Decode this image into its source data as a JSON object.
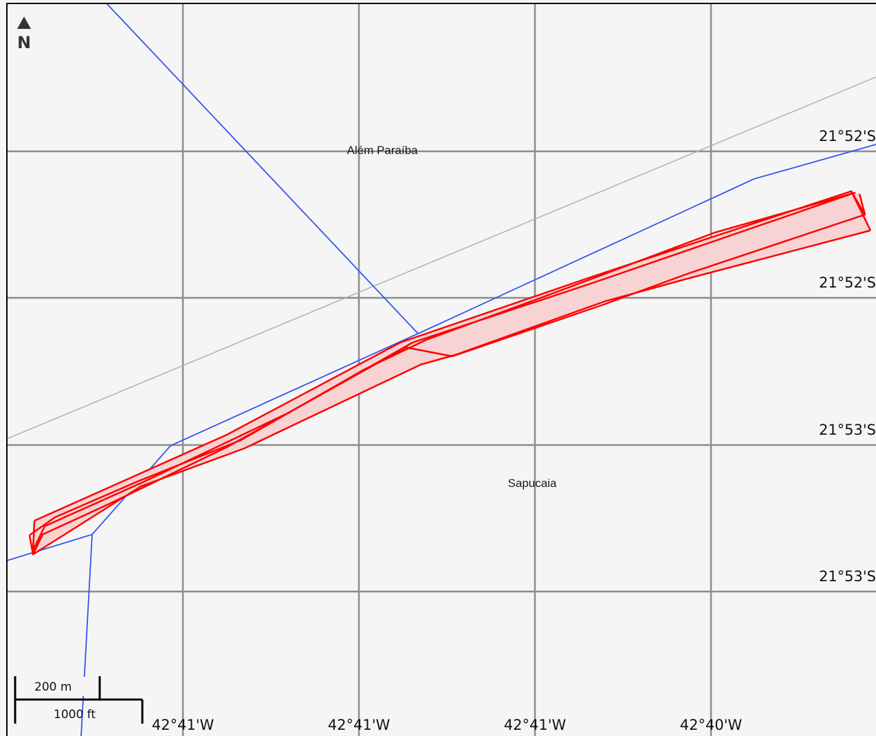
{
  "map": {
    "background_color": "#f5f5f5",
    "frame_color": "#000000",
    "grid_color": "#8c8c8c",
    "road_color": "#3355ee",
    "border_line_color": "#b0b0b0",
    "corridor_stroke_color": "#ff0000",
    "corridor_fill_color": "#f8d3d3",
    "north_arrow": {
      "icon": "north-arrow-icon",
      "letter": "N"
    },
    "latitude_labels": [
      "21°52'S",
      "21°52'S",
      "21°53'S",
      "21°53'S"
    ],
    "longitude_labels": [
      "42°41'W",
      "42°41'W",
      "42°41'W",
      "42°40'W"
    ],
    "place_labels": {
      "top": "Além Paraíba",
      "middle": "Sapucaia"
    },
    "scale_bar": {
      "metric_label": "200 m",
      "imperial_label": "1000 ft"
    }
  }
}
